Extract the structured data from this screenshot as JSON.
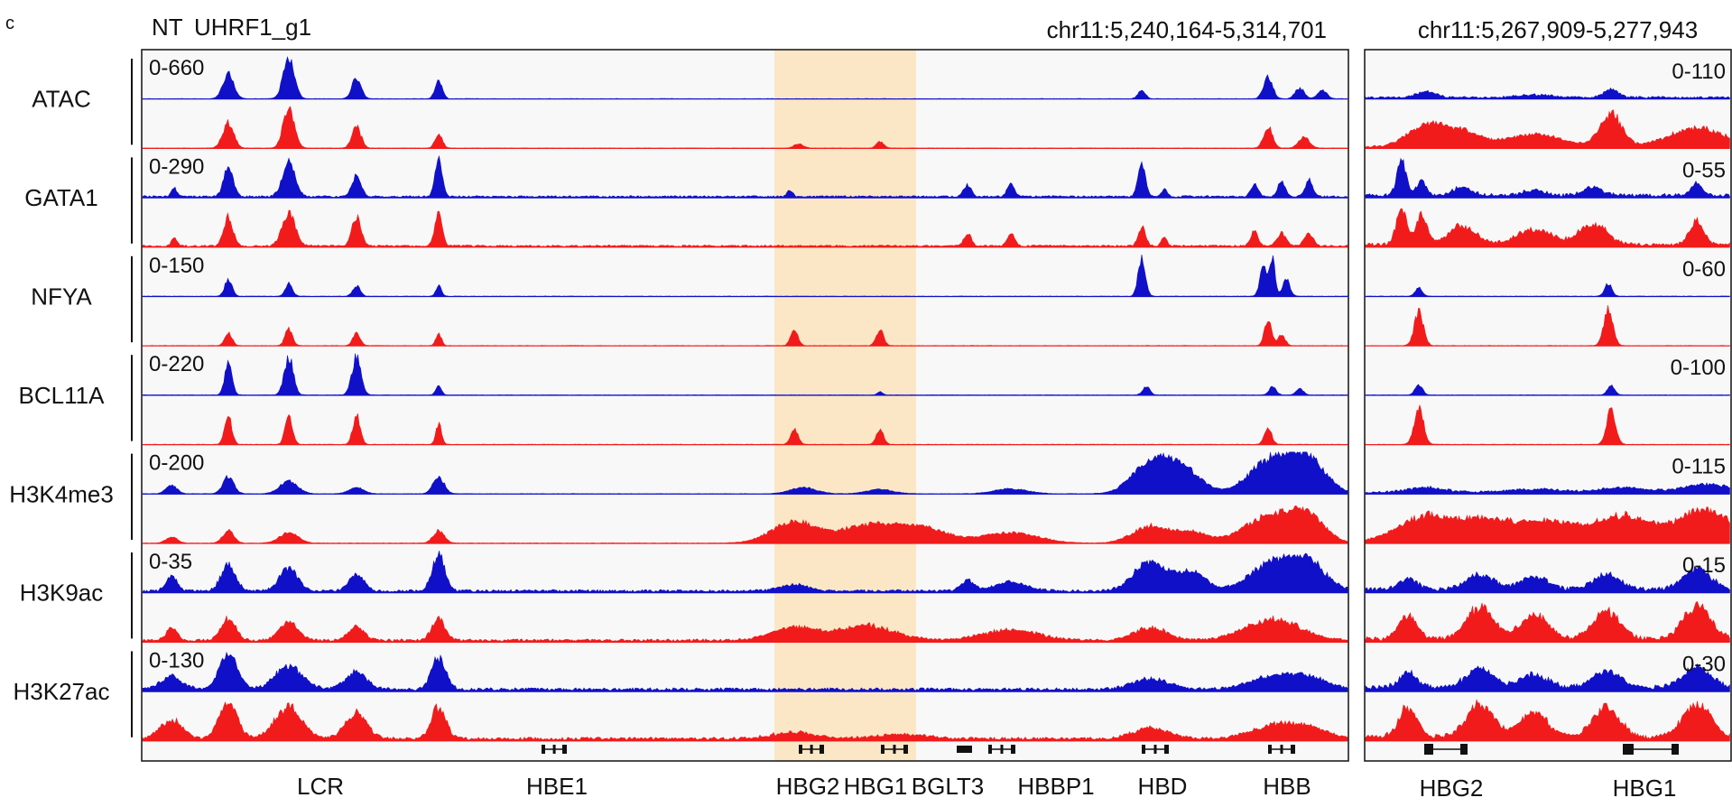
{
  "panel_label": "c",
  "legend": [
    {
      "label": "NT",
      "color": "#1010c8"
    },
    {
      "label": "UHRF1_g1",
      "color": "#f21b1b"
    }
  ],
  "colors": {
    "nt": "#1010c8",
    "uhrf1": "#f21b1b",
    "highlight": "#fbe7c6",
    "panel_bg": "#f8f8f8"
  },
  "chart_data": [
    {
      "type": "area",
      "region": "chr11:5,240,164-5,314,701",
      "tracks": [
        {
          "name": "ATAC",
          "range": "0-660"
        },
        {
          "name": "GATA1",
          "range": "0-290"
        },
        {
          "name": "NFYA",
          "range": "0-150"
        },
        {
          "name": "BCL11A",
          "range": "0-220"
        },
        {
          "name": "H3K4me3",
          "range": "0-200"
        },
        {
          "name": "H3K9ac",
          "range": "0-35"
        },
        {
          "name": "H3K27ac",
          "range": "0-130"
        }
      ],
      "series": [
        {
          "name": "NT"
        },
        {
          "name": "UHRF1_g1"
        }
      ],
      "genes": [
        "LCR",
        "HBE1",
        "HBG2",
        "HBG1",
        "BGLT3",
        "HBBP1",
        "HBD",
        "HBB"
      ],
      "highlighted_genes": [
        "HBG2",
        "HBG1"
      ]
    },
    {
      "type": "area",
      "region": "chr11:5,267,909-5,277,943",
      "tracks": [
        {
          "name": "ATAC",
          "range": "0-110"
        },
        {
          "name": "GATA1",
          "range": "0-55"
        },
        {
          "name": "NFYA",
          "range": "0-60"
        },
        {
          "name": "BCL11A",
          "range": "0-100"
        },
        {
          "name": "H3K4me3",
          "range": "0-115"
        },
        {
          "name": "H3K9ac",
          "range": "0-15"
        },
        {
          "name": "H3K27ac",
          "range": "0-30"
        }
      ],
      "series": [
        {
          "name": "NT"
        },
        {
          "name": "UHRF1_g1"
        }
      ],
      "genes": [
        "HBG2",
        "HBG1"
      ]
    }
  ]
}
